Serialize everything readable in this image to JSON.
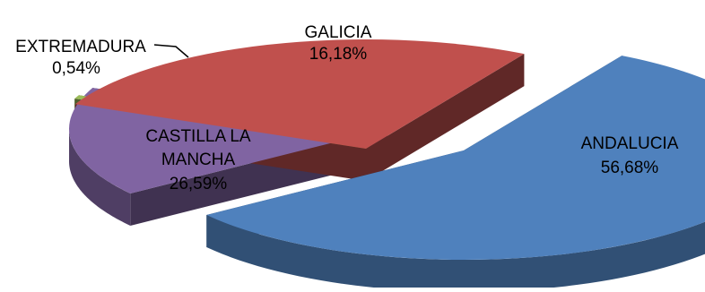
{
  "chart_data": {
    "type": "pie",
    "style": "3d-exploded",
    "title": "",
    "slices": [
      {
        "name": "ANDALUCIA",
        "value_label": "56,68%",
        "value": 56.68,
        "color": "#4F81BD"
      },
      {
        "name": "GALICIA",
        "value_label": "16,18%",
        "value": 16.18,
        "color": "#8064A2"
      },
      {
        "name": "EXTREMADURA",
        "value_label": "0,54%",
        "value": 0.54,
        "color": "#9BBB59"
      },
      {
        "name": "CASTILLA LA MANCHA",
        "value_label": "26,59%",
        "value": 26.59,
        "color": "#C0504D"
      }
    ],
    "legend": "none",
    "labels": "on-slices"
  }
}
